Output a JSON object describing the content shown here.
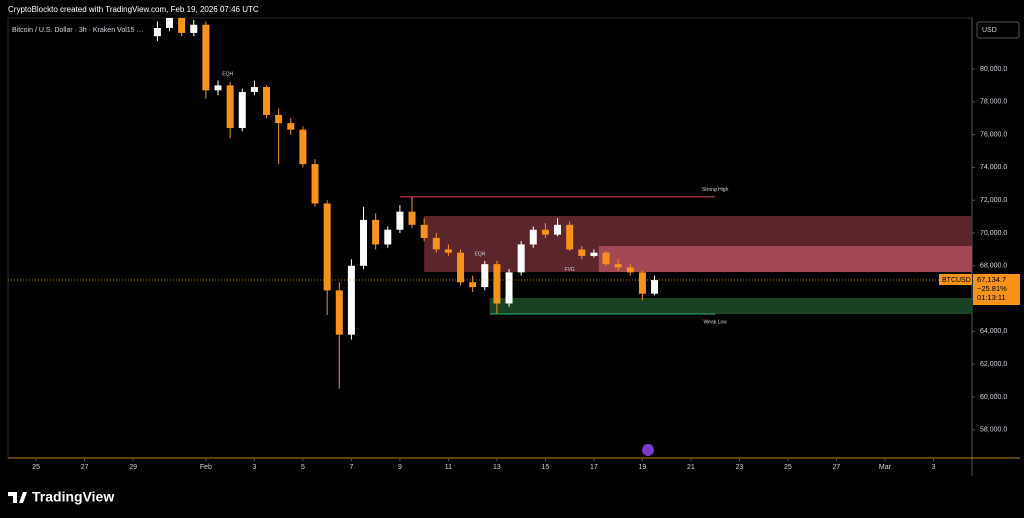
{
  "header": "CryptoBlockto created with TradingView.com, Feb 19, 2026 07:46 UTC",
  "footer": "TradingView",
  "chart_data": {
    "type": "candlestick",
    "title": "Bitcoin / U.S. Dollar · 3h · Kraken  Vol15 …",
    "currency": "USD",
    "symbol": "BTCUSD",
    "up_color": "#ffffff",
    "down_color": "#f7931a",
    "x": [
      -2,
      -1.5,
      -1,
      -0.5,
      0,
      0.5,
      1,
      1.5,
      2,
      2.5,
      3,
      3.5,
      4,
      4.5,
      5,
      5.5,
      6,
      6.5,
      7,
      7.5,
      8,
      8.5,
      9,
      9.5,
      10,
      10.5,
      11,
      11.5,
      12,
      12.5,
      13,
      13.5,
      14,
      14.5,
      15,
      15.5,
      16,
      16.5,
      17,
      17.5,
      18,
      18.5
    ],
    "open": [
      82000,
      82500,
      83300,
      82200,
      82700,
      78700,
      79000,
      76400,
      78600,
      78900,
      77200,
      76700,
      76300,
      74200,
      71800,
      66500,
      63800,
      68000,
      70800,
      69300,
      70200,
      71300,
      70500,
      69700,
      69000,
      68800,
      67000,
      66700,
      68100,
      65700,
      67600,
      69300,
      70200,
      69900,
      70500,
      69000,
      68600,
      68800,
      68100,
      67900,
      67600,
      66300
    ],
    "high": [
      82900,
      83600,
      83600,
      83000,
      82900,
      79300,
      79200,
      78800,
      79300,
      79000,
      77600,
      77000,
      76500,
      74500,
      72000,
      67000,
      68400,
      71600,
      71200,
      70400,
      71700,
      72200,
      70900,
      70000,
      69300,
      69000,
      67400,
      68300,
      68300,
      67800,
      69500,
      70400,
      70600,
      70900,
      70700,
      69200,
      69000,
      68900,
      68400,
      68100,
      67700,
      67400
    ],
    "low": [
      81700,
      82300,
      82000,
      82000,
      78200,
      78400,
      75800,
      76200,
      78400,
      77000,
      74200,
      76000,
      74000,
      71600,
      65000,
      60500,
      63500,
      67800,
      69000,
      69100,
      70000,
      70300,
      69500,
      68800,
      68600,
      66800,
      66400,
      66500,
      65100,
      65500,
      67400,
      69100,
      69700,
      69800,
      68900,
      68400,
      68500,
      68000,
      67700,
      67400,
      65900,
      66200
    ],
    "close": [
      82500,
      83300,
      82200,
      82700,
      78700,
      79000,
      76400,
      78600,
      78900,
      77200,
      76700,
      76300,
      74200,
      71800,
      66500,
      63800,
      68000,
      70800,
      69300,
      70200,
      71300,
      70500,
      69700,
      69000,
      68800,
      67000,
      66700,
      68100,
      65700,
      67600,
      69300,
      70200,
      69900,
      70500,
      69000,
      68600,
      68800,
      68100,
      67900,
      67600,
      66300,
      67135
    ],
    "xlim": [
      -8.16,
      31.59
    ],
    "xticks": [
      {
        "value": -7,
        "label": "25"
      },
      {
        "value": -5,
        "label": "27"
      },
      {
        "value": -3,
        "label": "29"
      },
      {
        "value": 0,
        "label": "Feb"
      },
      {
        "value": 2,
        "label": "3"
      },
      {
        "value": 4,
        "label": "5"
      },
      {
        "value": 6,
        "label": "7"
      },
      {
        "value": 8,
        "label": "9"
      },
      {
        "value": 10,
        "label": "11"
      },
      {
        "value": 12,
        "label": "13"
      },
      {
        "value": 14,
        "label": "15"
      },
      {
        "value": 16,
        "label": "17"
      },
      {
        "value": 18,
        "label": "19"
      },
      {
        "value": 20,
        "label": "21"
      },
      {
        "value": 22,
        "label": "23"
      },
      {
        "value": 24,
        "label": "25"
      },
      {
        "value": 26,
        "label": "27"
      },
      {
        "value": 28,
        "label": "Mar"
      },
      {
        "value": 30,
        "label": "3"
      }
    ],
    "ylim": [
      56280,
      83110
    ],
    "yticks": [
      {
        "value": 58000,
        "label": "58,000.0"
      },
      {
        "value": 60000,
        "label": "60,000.0"
      },
      {
        "value": 62000,
        "label": "62,000.0"
      },
      {
        "value": 64000,
        "label": "64,000.0"
      },
      {
        "value": 66000,
        "label": "66,000.0"
      },
      {
        "value": 68000,
        "label": "68,000.0"
      },
      {
        "value": 70000,
        "label": "70,000.0"
      },
      {
        "value": 72000,
        "label": "72,000.0"
      },
      {
        "value": 74000,
        "label": "74,000.0"
      },
      {
        "value": 76000,
        "label": "76,000.0"
      },
      {
        "value": 78000,
        "label": "78,000.0"
      },
      {
        "value": 80000,
        "label": "80,000.0"
      }
    ],
    "last_price": {
      "value": 67134.7,
      "label": "67,134.7"
    },
    "change_pct": {
      "value": -25.81,
      "label": "−25.81%"
    },
    "countdown": "01:13:11",
    "zones": [
      {
        "x": 9.0,
        "low": 67620,
        "high": 71040,
        "color": "#6b2c33"
      },
      {
        "x": 16.2,
        "low": 67620,
        "high": 69200,
        "color": "#b0505c"
      },
      {
        "x": 11.7,
        "low": 65060,
        "high": 66040,
        "color": "#1d4d2c"
      }
    ],
    "levels": [
      {
        "label": "Strong High",
        "value": 72200,
        "x": [
          8,
          21
        ],
        "color": "#e0404a"
      },
      {
        "label": "Weak Low",
        "value": 65060,
        "x": [
          11.7,
          21
        ],
        "color": "#2bb673"
      }
    ],
    "annotations": [
      {
        "label": "EQH",
        "x": 0.9,
        "value": 79700,
        "color": "#e0404a"
      },
      {
        "label": "EQH",
        "x": 11.3,
        "value": 68700,
        "color": "#e0404a"
      },
      {
        "label": "FVG",
        "x": 15.0,
        "value": 67750,
        "color": "#2bb673"
      }
    ]
  }
}
